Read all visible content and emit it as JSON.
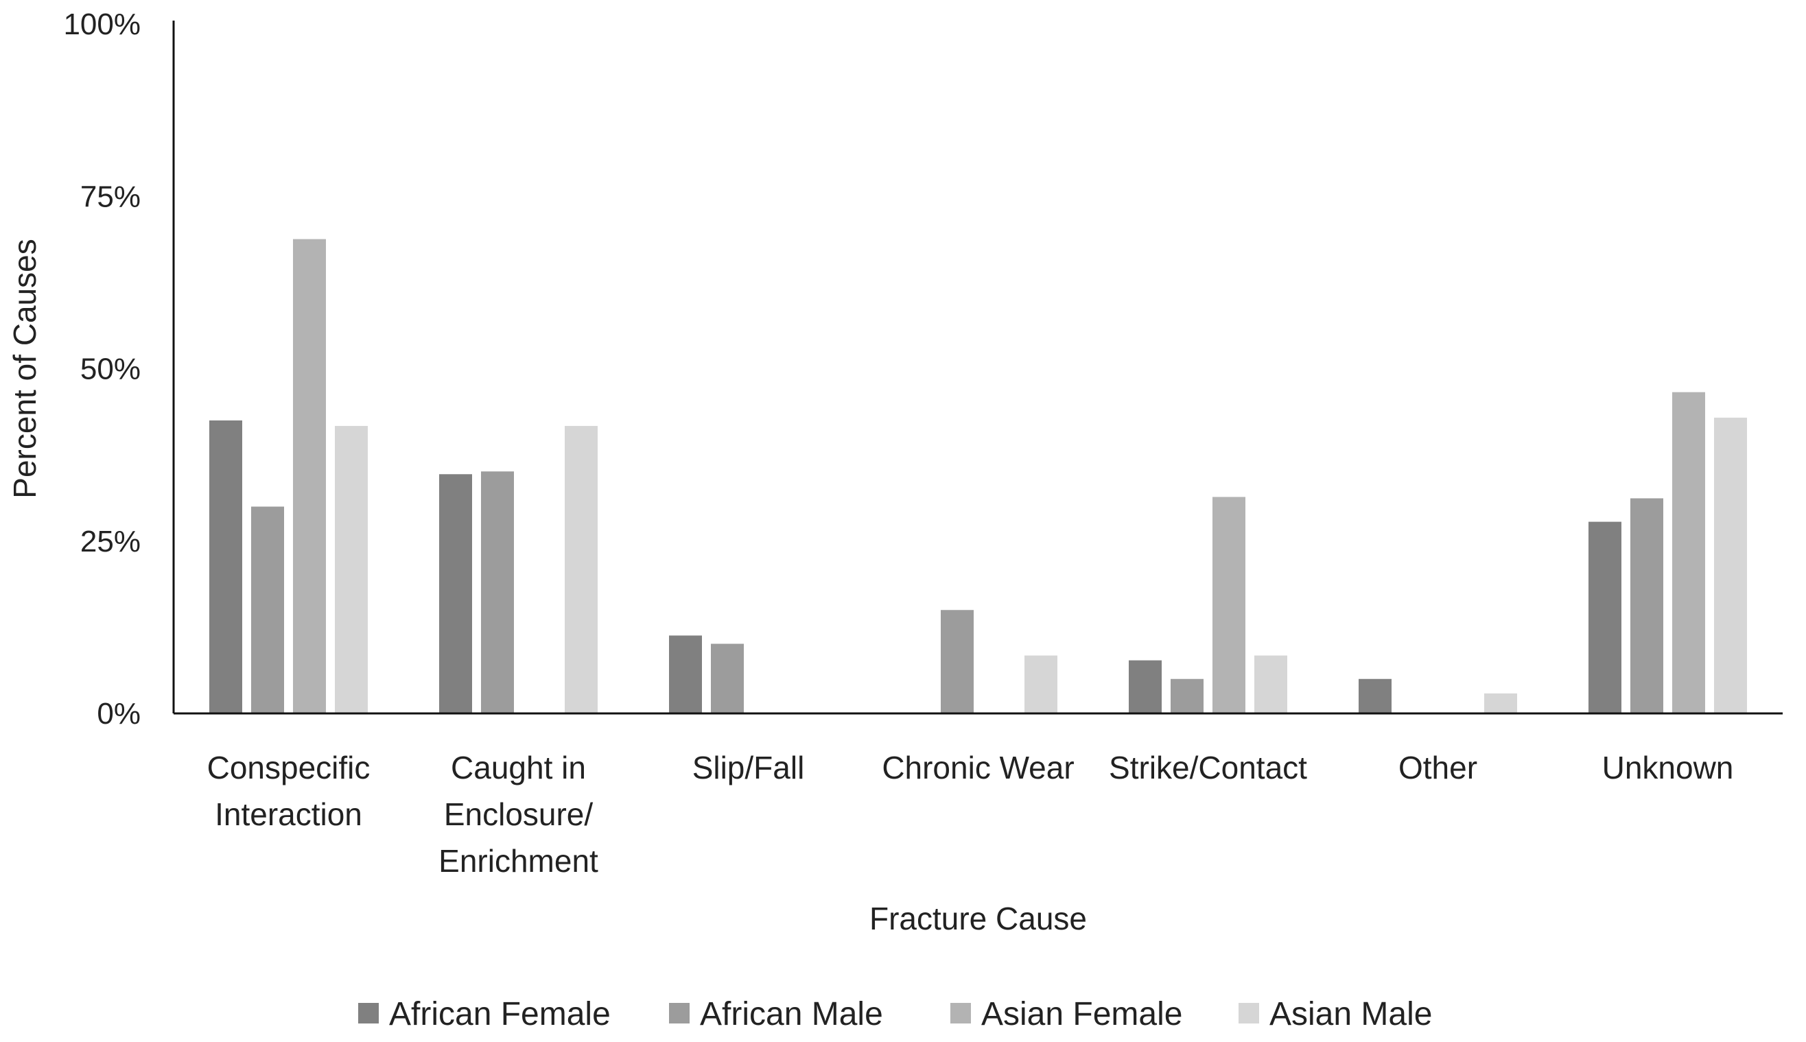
{
  "chart_data": {
    "type": "bar",
    "title": "",
    "xlabel": "Fracture Cause",
    "ylabel": "Percent of Causes",
    "ylim": [
      0,
      100
    ],
    "yticks": [
      0,
      25,
      50,
      75,
      100
    ],
    "ytick_labels": [
      "0%",
      "25%",
      "50%",
      "75%",
      "100%"
    ],
    "grid": false,
    "legend_position": "bottom",
    "categories": [
      [
        "Conspecific",
        "Interaction"
      ],
      [
        "Caught in",
        "Enclosure/",
        "Enrichment"
      ],
      [
        "Slip/Fall"
      ],
      [
        "Chronic Wear"
      ],
      [
        "Strike/Contact"
      ],
      [
        "Other"
      ],
      [
        "Unknown"
      ]
    ],
    "series": [
      {
        "name": "African Female",
        "color": "#808080",
        "values": [
          42.5,
          34.7,
          11.3,
          0,
          7.7,
          5.0,
          27.8
        ]
      },
      {
        "name": "African Male",
        "color": "#9c9c9c",
        "values": [
          30.0,
          35.1,
          10.1,
          15.0,
          5.0,
          0,
          31.2
        ]
      },
      {
        "name": "Asian Female",
        "color": "#b3b3b3",
        "values": [
          68.8,
          0,
          0,
          0,
          31.4,
          0,
          46.6
        ]
      },
      {
        "name": "Asian Male",
        "color": "#d6d6d6",
        "values": [
          41.7,
          41.7,
          0,
          8.4,
          8.4,
          2.9,
          42.9
        ]
      }
    ]
  }
}
